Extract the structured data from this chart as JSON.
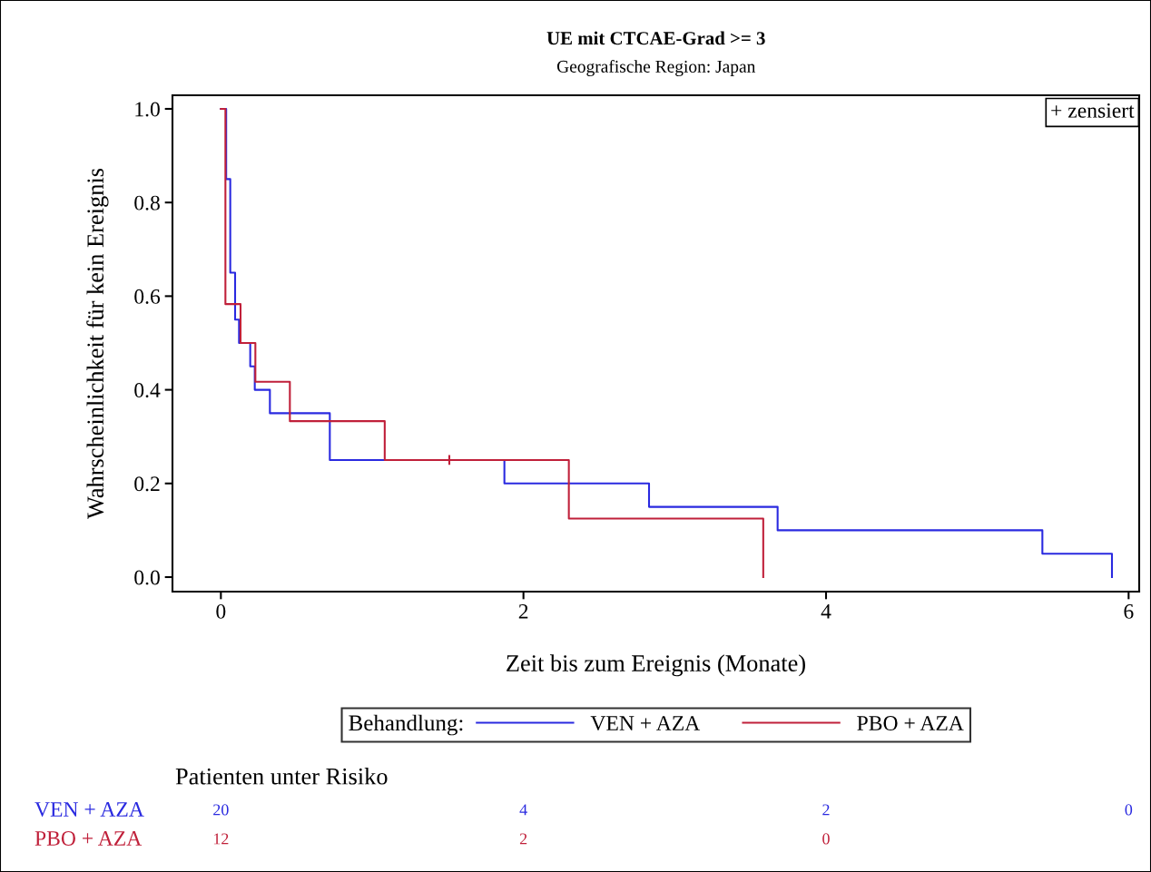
{
  "chart_data": {
    "type": "step",
    "title": "UE mit CTCAE-Grad >= 3",
    "subtitle": "Geografische Region: Japan",
    "xlabel": "Zeit bis zum Ereignis (Monate)",
    "ylabel": "Wahrscheinlichkeit für kein Ereignis",
    "legend_title": "Behandlung:",
    "series": [
      {
        "name": "VEN + AZA",
        "color": "#2a2ae0",
        "x": [
          0,
          0.035,
          0.062,
          0.094,
          0.12,
          0.194,
          0.224,
          0.324,
          0.72,
          1.874,
          2.83,
          3.68,
          5.43,
          5.89
        ],
        "values": [
          1.0,
          0.85,
          0.65,
          0.55,
          0.5,
          0.45,
          0.4,
          0.35,
          0.25,
          0.2,
          0.15,
          0.1,
          0.05,
          0.0
        ]
      },
      {
        "name": "PBO + AZA",
        "color": "#c0203a",
        "x": [
          0,
          0.03,
          0.13,
          0.228,
          0.456,
          1.083,
          2.3,
          3.585
        ],
        "values": [
          1.0,
          0.583,
          0.5,
          0.417,
          0.333,
          0.25,
          0.125,
          0.0
        ]
      },
      {
        "type": "scatter",
        "color": "#c0203a",
        "marker": "cross",
        "x": [
          1.51
        ],
        "values": [
          0.25
        ]
      }
    ],
    "xlim": [
      -0.32,
      6.07
    ],
    "ylim": [
      -0.031,
      1.029
    ],
    "xticks": [
      0,
      2,
      4,
      6
    ],
    "yticks": [
      {
        "value": 0,
        "label": "0.0"
      },
      {
        "value": 0.2,
        "label": "0.2"
      },
      {
        "value": 0.4,
        "label": "0.4"
      },
      {
        "value": 0.6,
        "label": "0.6"
      },
      {
        "value": 0.8,
        "label": "0.8"
      },
      {
        "value": 1,
        "label": "1.0"
      }
    ],
    "grid": false,
    "legend": "bottom",
    "annotations": [
      "+ zensiert",
      "Patienten unter Risiko",
      "20",
      "4",
      "2",
      "0",
      "12",
      "2",
      "0"
    ]
  }
}
